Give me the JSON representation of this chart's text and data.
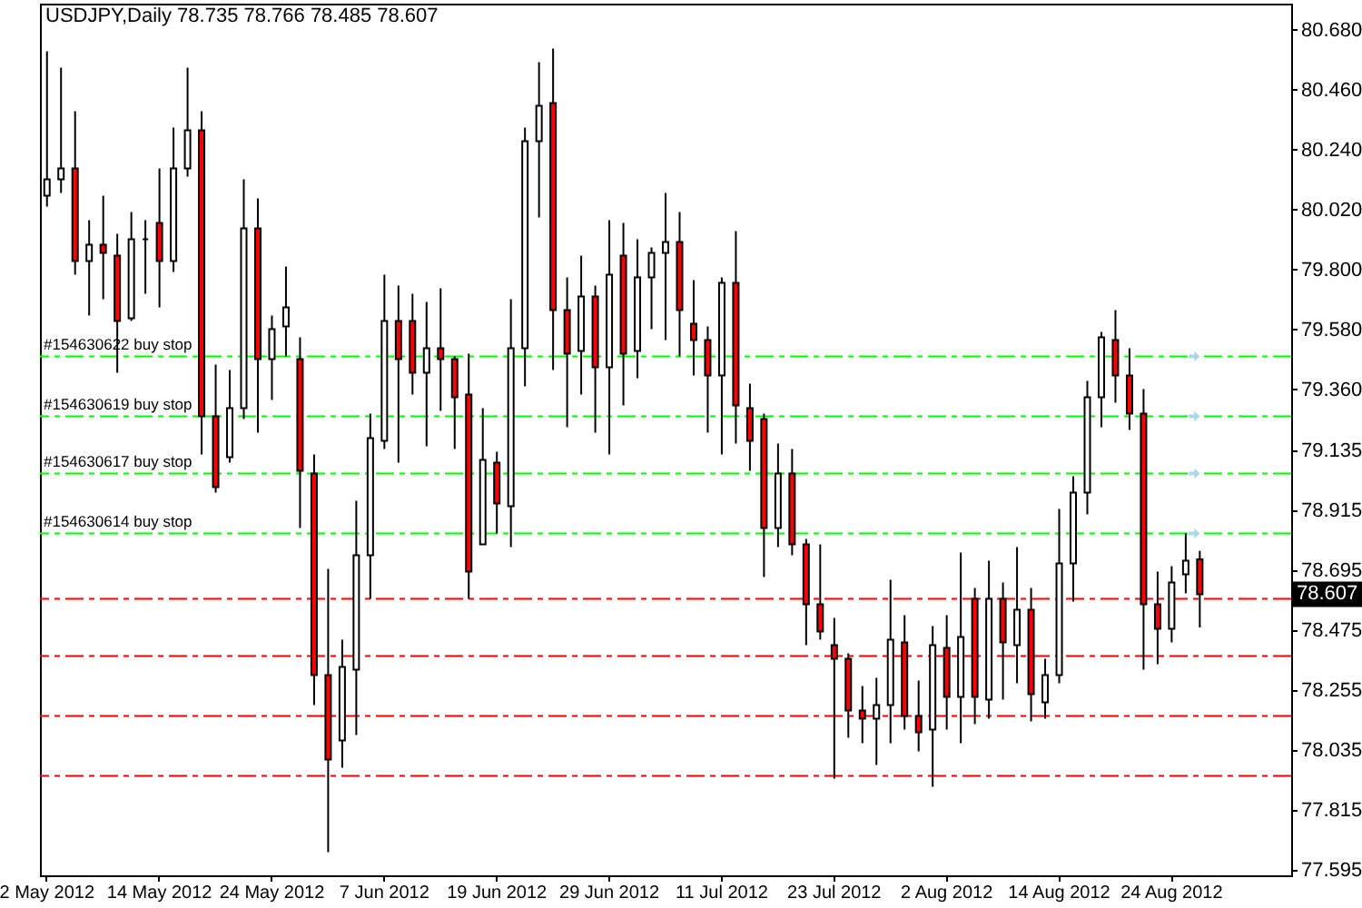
{
  "chart_data": {
    "type": "candlestick",
    "title": "USDJPY,Daily 78.735 78.766 78.485 78.607",
    "categories": [
      "2 May 2012",
      null,
      null,
      null,
      null,
      null,
      null,
      null,
      "14 May 2012",
      null,
      null,
      null,
      null,
      null,
      null,
      null,
      "24 May 2012",
      null,
      null,
      null,
      null,
      null,
      null,
      null,
      "7 Jun 2012",
      null,
      null,
      null,
      null,
      null,
      null,
      null,
      "19 Jun 2012",
      null,
      null,
      null,
      null,
      null,
      null,
      null,
      "29 Jun 2012",
      null,
      null,
      null,
      null,
      null,
      null,
      null,
      "11 Jul 2012",
      null,
      null,
      null,
      null,
      null,
      null,
      null,
      "23 Jul 2012",
      null,
      null,
      null,
      null,
      null,
      null,
      null,
      "2 Aug 2012",
      null,
      null,
      null,
      null,
      null,
      null,
      null,
      "14 Aug 2012",
      null,
      null,
      null,
      null,
      null,
      null,
      null,
      "24 Aug 2012",
      null,
      null,
      null,
      null,
      null,
      null,
      null,
      null
    ],
    "ohlc": [
      [
        80.07,
        80.6,
        80.03,
        80.13
      ],
      [
        80.13,
        80.54,
        80.08,
        80.17
      ],
      [
        80.17,
        80.38,
        79.78,
        79.83
      ],
      [
        79.83,
        79.98,
        79.63,
        79.89
      ],
      [
        79.89,
        80.07,
        79.69,
        79.86
      ],
      [
        79.85,
        79.93,
        79.42,
        79.61
      ],
      [
        79.62,
        80.01,
        79.61,
        79.91
      ],
      [
        79.91,
        79.98,
        79.71,
        79.91
      ],
      [
        79.97,
        80.17,
        79.66,
        79.83
      ],
      [
        79.83,
        80.32,
        79.79,
        80.17
      ],
      [
        80.17,
        80.54,
        80.14,
        80.31
      ],
      [
        80.31,
        80.38,
        79.12,
        79.26
      ],
      [
        79.26,
        79.45,
        78.98,
        79.0
      ],
      [
        79.11,
        79.43,
        79.09,
        79.29
      ],
      [
        79.29,
        80.13,
        79.25,
        79.95
      ],
      [
        79.95,
        80.06,
        79.2,
        79.47
      ],
      [
        79.47,
        79.63,
        79.32,
        79.58
      ],
      [
        79.59,
        79.81,
        79.48,
        79.66
      ],
      [
        79.47,
        79.55,
        78.85,
        79.06
      ],
      [
        79.05,
        79.12,
        78.2,
        78.31
      ],
      [
        78.31,
        78.7,
        77.66,
        78.0
      ],
      [
        78.07,
        78.44,
        77.97,
        78.34
      ],
      [
        78.33,
        78.95,
        78.09,
        78.75
      ],
      [
        78.75,
        79.27,
        78.59,
        79.18
      ],
      [
        79.17,
        79.78,
        79.14,
        79.61
      ],
      [
        79.61,
        79.74,
        79.09,
        79.47
      ],
      [
        79.61,
        79.71,
        79.34,
        79.42
      ],
      [
        79.42,
        79.68,
        79.15,
        79.51
      ],
      [
        79.51,
        79.73,
        79.28,
        79.47
      ],
      [
        79.47,
        79.48,
        79.14,
        79.33
      ],
      [
        79.34,
        79.49,
        78.59,
        78.69
      ],
      [
        78.79,
        79.29,
        78.79,
        79.1
      ],
      [
        79.09,
        79.13,
        78.83,
        78.94
      ],
      [
        78.93,
        79.69,
        78.78,
        79.51
      ],
      [
        79.51,
        80.32,
        79.37,
        80.27
      ],
      [
        80.27,
        80.56,
        79.99,
        80.4
      ],
      [
        80.41,
        80.61,
        79.43,
        79.65
      ],
      [
        79.65,
        79.77,
        79.22,
        79.49
      ],
      [
        79.5,
        79.85,
        79.34,
        79.7
      ],
      [
        79.7,
        79.74,
        79.2,
        79.44
      ],
      [
        79.44,
        79.98,
        79.12,
        79.78
      ],
      [
        79.85,
        79.97,
        79.3,
        79.49
      ],
      [
        79.5,
        79.91,
        79.4,
        79.77
      ],
      [
        79.77,
        79.88,
        79.58,
        79.86
      ],
      [
        79.86,
        80.08,
        79.54,
        79.9
      ],
      [
        79.9,
        80.01,
        79.48,
        79.65
      ],
      [
        79.6,
        79.76,
        79.41,
        79.54
      ],
      [
        79.54,
        79.59,
        79.2,
        79.41
      ],
      [
        79.41,
        79.77,
        79.12,
        79.75
      ],
      [
        79.75,
        79.94,
        79.16,
        79.3
      ],
      [
        79.29,
        79.38,
        79.06,
        79.17
      ],
      [
        79.25,
        79.27,
        78.67,
        78.85
      ],
      [
        78.85,
        79.16,
        78.78,
        79.05
      ],
      [
        79.05,
        79.14,
        78.75,
        78.79
      ],
      [
        78.79,
        78.81,
        78.42,
        78.57
      ],
      [
        78.57,
        78.79,
        78.44,
        78.47
      ],
      [
        78.42,
        78.52,
        77.93,
        78.37
      ],
      [
        78.37,
        78.39,
        78.08,
        78.18
      ],
      [
        78.18,
        78.27,
        78.06,
        78.15
      ],
      [
        78.15,
        78.3,
        77.98,
        78.2
      ],
      [
        78.2,
        78.66,
        78.06,
        78.44
      ],
      [
        78.43,
        78.53,
        78.11,
        78.16
      ],
      [
        78.16,
        78.29,
        78.03,
        78.1
      ],
      [
        78.11,
        78.49,
        77.9,
        78.42
      ],
      [
        78.41,
        78.53,
        78.11,
        78.23
      ],
      [
        78.23,
        78.76,
        78.06,
        78.45
      ],
      [
        78.59,
        78.63,
        78.13,
        78.23
      ],
      [
        78.22,
        78.73,
        78.15,
        78.59
      ],
      [
        78.59,
        78.65,
        78.22,
        78.43
      ],
      [
        78.42,
        78.78,
        78.28,
        78.55
      ],
      [
        78.55,
        78.63,
        78.14,
        78.24
      ],
      [
        78.21,
        78.37,
        78.15,
        78.31
      ],
      [
        78.31,
        78.92,
        78.28,
        78.72
      ],
      [
        78.72,
        79.04,
        78.58,
        78.98
      ],
      [
        78.98,
        79.39,
        78.9,
        79.33
      ],
      [
        79.33,
        79.57,
        79.22,
        79.55
      ],
      [
        79.54,
        79.65,
        79.31,
        79.41
      ],
      [
        79.41,
        79.51,
        79.21,
        79.27
      ],
      [
        79.27,
        79.36,
        78.33,
        78.57
      ],
      [
        78.57,
        78.69,
        78.35,
        78.48
      ],
      [
        78.48,
        78.71,
        78.43,
        78.65
      ],
      [
        78.68,
        78.83,
        78.61,
        78.73
      ],
      [
        78.735,
        78.766,
        78.485,
        78.607
      ],
      null,
      null,
      null,
      null,
      null,
      null
    ],
    "colors": [
      "#ffffff",
      "#ffffff",
      "#ff0000",
      "#ffffff",
      "#ff0000",
      "#ff0000",
      "#ffffff",
      "#000000",
      "#ff0000",
      "#ffffff",
      "#ffffff",
      "#ff0000",
      "#ff0000",
      "#ffffff",
      "#ffffff",
      "#ff0000",
      "#ffffff",
      "#ffffff",
      "#ff0000",
      "#ff0000",
      "#ff0000",
      "#ffffff",
      "#ffffff",
      "#ffffff",
      "#ffffff",
      "#ff0000",
      "#ff0000",
      "#ffffff",
      "#ff0000",
      "#ff0000",
      "#ff0000",
      "#ffffff",
      "#ff0000",
      "#ffffff",
      "#ffffff",
      "#ffffff",
      "#ff0000",
      "#ff0000",
      "#ffffff",
      "#ff0000",
      "#ffffff",
      "#ff0000",
      "#ffffff",
      "#ffffff",
      "#ffffff",
      "#ff0000",
      "#ff0000",
      "#ff0000",
      "#ffffff",
      "#ff0000",
      "#ff0000",
      "#ff0000",
      "#ffffff",
      "#ff0000",
      "#ff0000",
      "#ff0000",
      "#ff0000",
      "#ff0000",
      "#ff0000",
      "#ffffff",
      "#ffffff",
      "#ff0000",
      "#ff0000",
      "#ffffff",
      "#ff0000",
      "#ffffff",
      "#ff0000",
      "#ffffff",
      "#ff0000",
      "#ffffff",
      "#ff0000",
      "#ffffff",
      "#ffffff",
      "#ffffff",
      "#ffffff",
      "#ffffff",
      "#ff0000",
      "#ff0000",
      "#ff0000",
      "#ff0000",
      "#ffffff",
      "#ffffff",
      "#ff0000",
      null,
      null,
      null,
      null,
      null,
      null
    ],
    "ylim": [
      77.575,
      80.775
    ],
    "yticks": [
      {
        "value": 80.68,
        "label": "80.680"
      },
      {
        "value": 80.46,
        "label": "80.460"
      },
      {
        "value": 80.24,
        "label": "80.240"
      },
      {
        "value": 80.02,
        "label": "80.020"
      },
      {
        "value": 79.8,
        "label": "79.800"
      },
      {
        "value": 79.58,
        "label": "79.580"
      },
      {
        "value": 79.36,
        "label": "79.360"
      },
      79.135,
      78.915,
      78.695,
      78.475,
      78.255,
      78.035,
      77.815,
      77.595
    ],
    "grid": false,
    "ref_lines": [
      {
        "axis": "y",
        "value": 79.48,
        "label": "#154630622 buy stop",
        "color": "#00ff00",
        "line_style": "dashed"
      },
      {
        "axis": "y",
        "value": 79.26,
        "label": "#154630619 buy stop",
        "color": "#00ff00",
        "line_style": "dashed"
      },
      {
        "axis": "y",
        "value": 79.05,
        "label": "#154630617 buy stop",
        "color": "#00ff00",
        "line_style": "dashed"
      },
      {
        "axis": "y",
        "value": 78.83,
        "label": "#154630614 buy stop",
        "color": "#00ff00",
        "line_style": "dashed"
      },
      {
        "axis": "y",
        "value": 78.59,
        "color": "#ff0000",
        "line_style": "dashed"
      },
      {
        "axis": "y",
        "value": 78.38,
        "color": "#ff0000",
        "line_style": "dashed"
      },
      {
        "axis": "y",
        "value": 78.16,
        "color": "#ff0000",
        "line_style": "dashed"
      },
      {
        "axis": "y",
        "value": 77.94,
        "color": "#ff0000",
        "line_style": "dashed"
      }
    ],
    "annotations": [
      "78.607"
    ]
  }
}
